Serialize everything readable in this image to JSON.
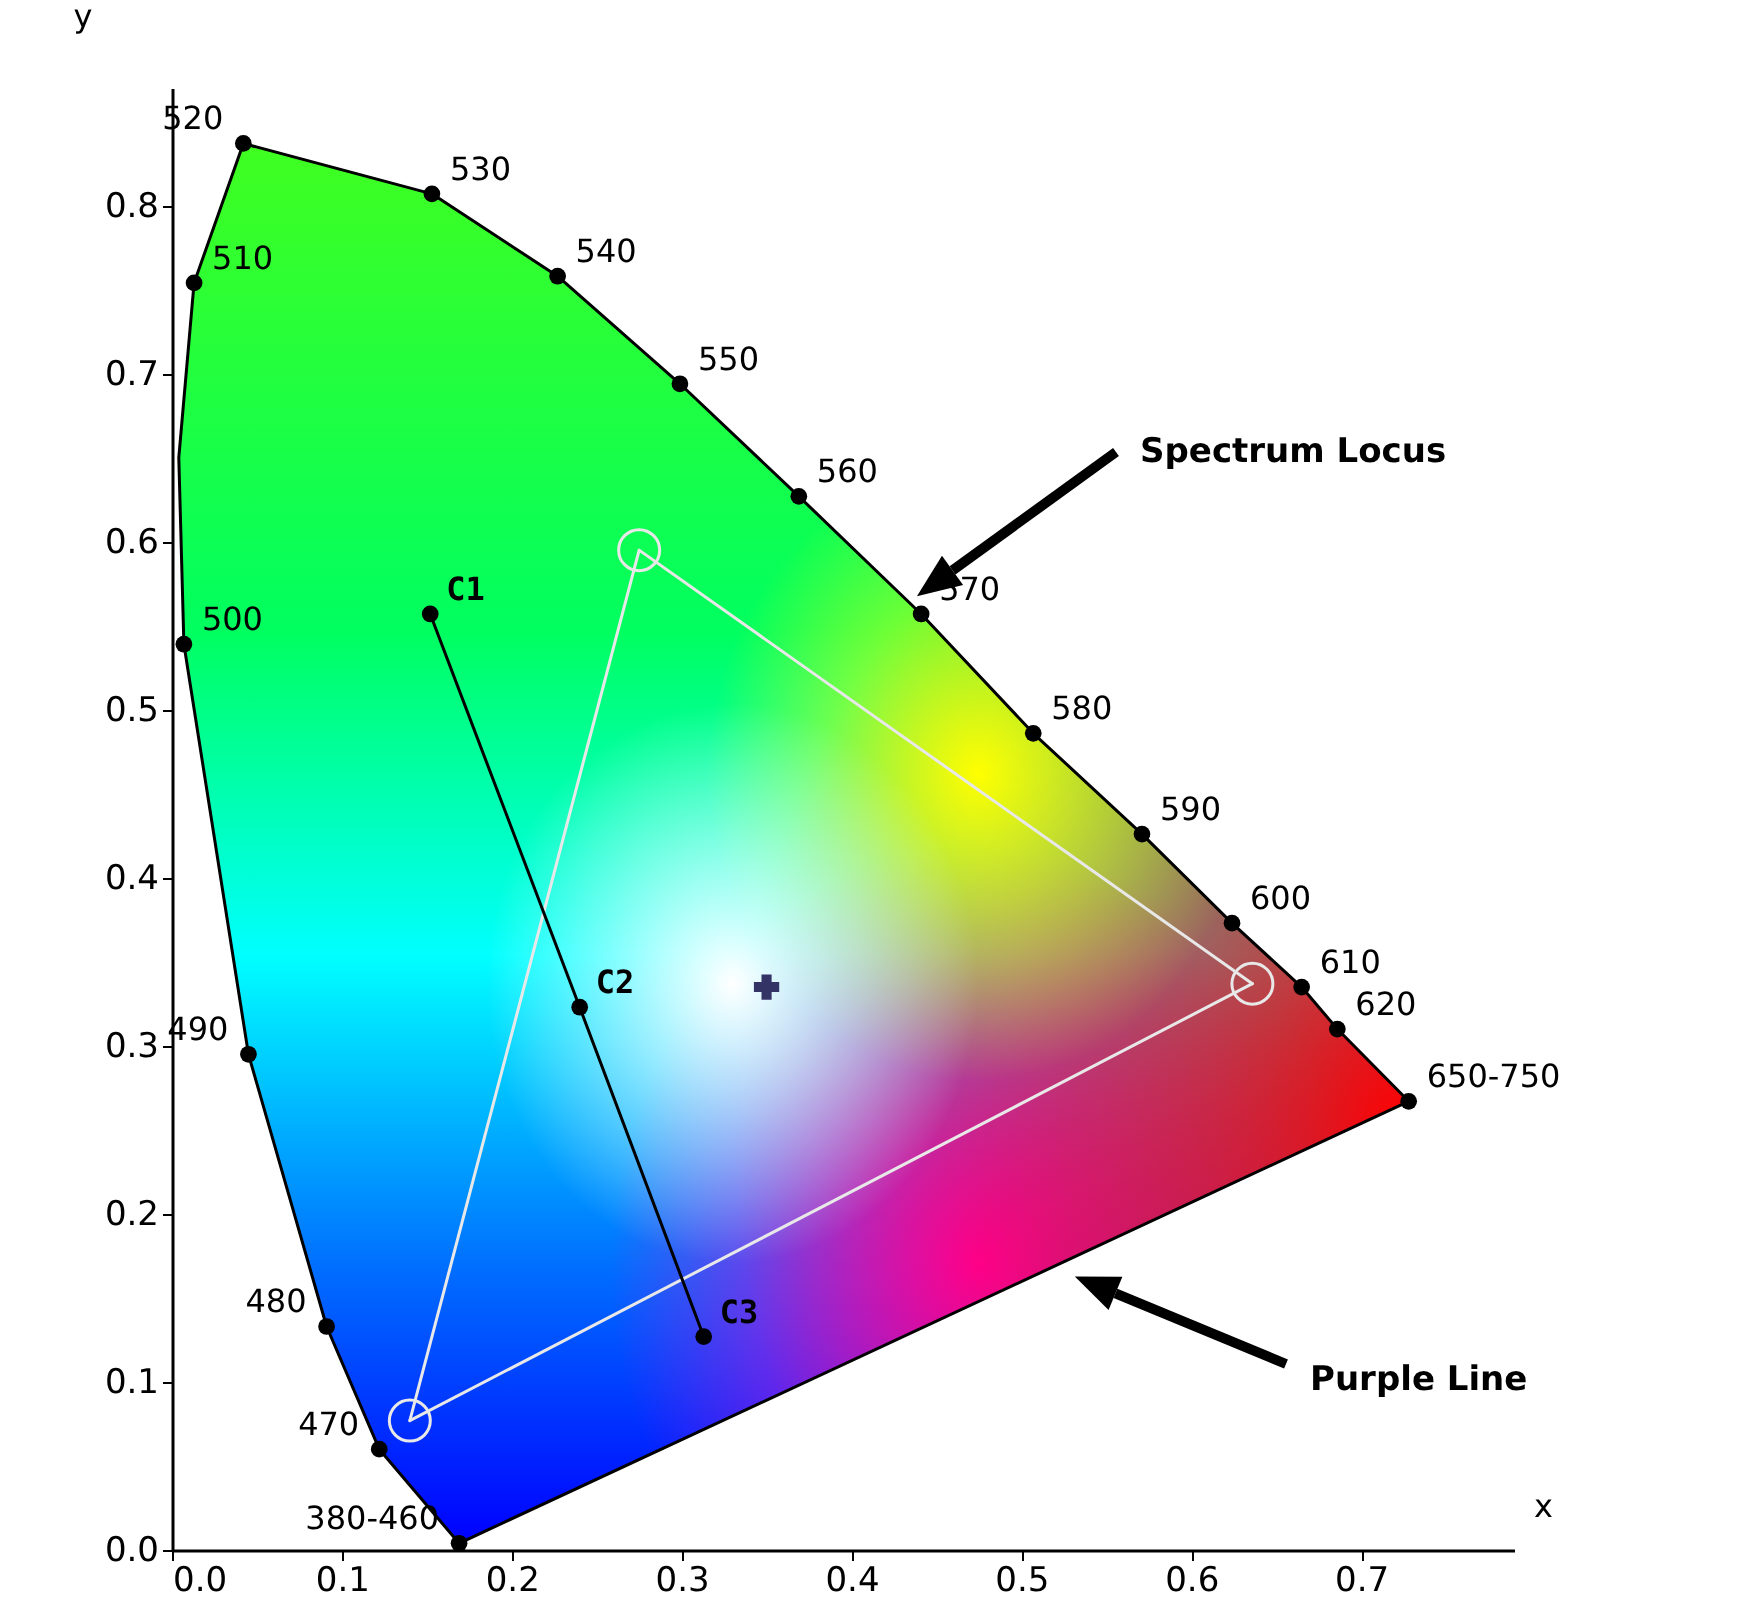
{
  "chart_data": {
    "type": "line",
    "xlabel": "x",
    "ylabel": "y",
    "xlim": [
      0,
      0.79
    ],
    "ylim": [
      0,
      0.87
    ],
    "xticks": [
      {
        "value": 0,
        "label": "0.0"
      },
      0.1,
      0.2,
      0.3,
      0.4,
      0.5,
      0.6,
      0.7
    ],
    "yticks": [
      {
        "value": 0,
        "label": "0.0"
      },
      0.1,
      0.2,
      0.3,
      0.4,
      0.5,
      0.6,
      0.7,
      0.8
    ],
    "grid": false,
    "annotations": [
      "Spectrum Locus",
      "Purple Line",
      {
        "text": "380-460",
        "x": 0.169,
        "y": 0.004
      },
      {
        "text": "470",
        "x": 0.122,
        "y": 0.06
      },
      {
        "text": "480",
        "x": 0.091,
        "y": 0.133
      },
      {
        "text": "490",
        "x": 0.045,
        "y": 0.295
      },
      {
        "text": "500",
        "x": 0.007,
        "y": 0.539
      },
      {
        "text": "510",
        "x": 0.013,
        "y": 0.754
      },
      {
        "text": "520",
        "x": 0.042,
        "y": 0.837
      },
      {
        "text": "530",
        "x": 0.153,
        "y": 0.807
      },
      {
        "text": "540",
        "x": 0.227,
        "y": 0.758
      },
      {
        "text": "550",
        "x": 0.299,
        "y": 0.694
      },
      {
        "text": "560",
        "x": 0.369,
        "y": 0.627
      },
      {
        "text": "570",
        "x": 0.441,
        "y": 0.557
      },
      {
        "text": "580",
        "x": 0.507,
        "y": 0.486
      },
      {
        "text": "590",
        "x": 0.571,
        "y": 0.426
      },
      {
        "text": "600",
        "x": 0.624,
        "y": 0.373
      },
      {
        "text": "610",
        "x": 0.665,
        "y": 0.335
      },
      {
        "text": "620",
        "x": 0.686,
        "y": 0.31
      },
      {
        "text": "650-750",
        "x": 0.728,
        "y": 0.267
      },
      {
        "text": "C1",
        "x": 0.152,
        "y": 0.557
      },
      {
        "text": "C2",
        "x": 0.24,
        "y": 0.323
      },
      {
        "text": "C3",
        "x": 0.313,
        "y": 0.127
      }
    ],
    "series": [
      {
        "type": "line",
        "color": "#000000",
        "marker": "none",
        "x": [
          0.169,
          0.122,
          0.091,
          0.045,
          0.007,
          0.004,
          0.013,
          0.042,
          0.153,
          0.227,
          0.299,
          0.369,
          0.441,
          0.507,
          0.571,
          0.624,
          0.665,
          0.686,
          0.728
        ],
        "values": [
          0.004,
          0.06,
          0.133,
          0.295,
          0.539,
          0.65,
          0.754,
          0.837,
          0.807,
          0.758,
          0.694,
          0.627,
          0.557,
          0.486,
          0.426,
          0.373,
          0.335,
          0.31,
          0.267
        ]
      },
      {
        "type": "line",
        "color": "#000000",
        "marker": "none",
        "x": [
          0.728,
          0.169
        ],
        "values": [
          0.267,
          0.004
        ]
      },
      {
        "type": "scatter",
        "color": "#000000",
        "marker": "circle",
        "x": [
          0.169,
          0.122,
          0.091,
          0.045,
          0.007,
          0.013,
          0.042,
          0.153,
          0.227,
          0.299,
          0.369,
          0.441,
          0.507,
          0.571,
          0.624,
          0.665,
          0.686,
          0.728
        ],
        "values": [
          0.004,
          0.06,
          0.133,
          0.295,
          0.539,
          0.754,
          0.837,
          0.807,
          0.758,
          0.694,
          0.627,
          0.557,
          0.486,
          0.426,
          0.373,
          0.335,
          0.31,
          0.267
        ]
      },
      {
        "type": "line",
        "color": "#e8e8e8",
        "marker": "circle",
        "x": [
          0.14,
          0.275,
          0.636
        ],
        "values": [
          0.077,
          0.595,
          0.337
        ]
      },
      {
        "type": "line",
        "color": "#e8e8e8",
        "marker": "none",
        "x": [
          0.14,
          0.636
        ],
        "values": [
          0.077,
          0.337
        ]
      },
      {
        "type": "line",
        "color": "#000000",
        "marker": "circle",
        "x": [
          0.152,
          0.24,
          0.313
        ],
        "values": [
          0.557,
          0.323,
          0.127
        ]
      },
      {
        "type": "scatter",
        "color": "#333366",
        "marker": "cross",
        "x": [
          0.35
        ],
        "values": [
          0.335
        ]
      }
    ]
  }
}
